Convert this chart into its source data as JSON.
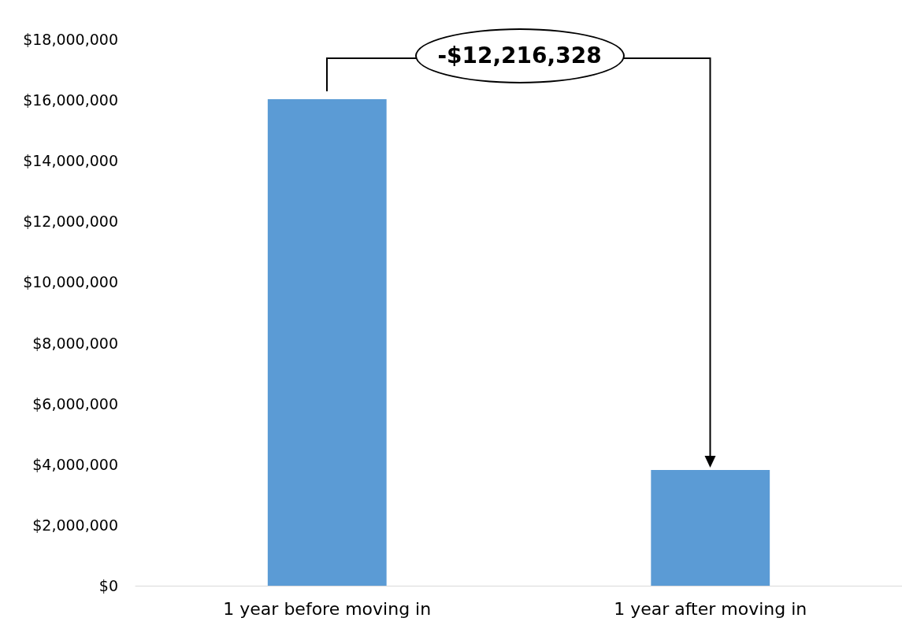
{
  "chart_data": {
    "type": "bar",
    "categories": [
      "1 year before moving in",
      "1 year after moving in"
    ],
    "values": [
      16030000,
      3810000
    ],
    "color": "#5b9bd5",
    "ylim": [
      0,
      18000000
    ],
    "yticks": [
      {
        "value": 0,
        "label": "$0"
      },
      {
        "value": 2000000,
        "label": "$2,000,000"
      },
      {
        "value": 4000000,
        "label": "$4,000,000"
      },
      {
        "value": 6000000,
        "label": "$6,000,000"
      },
      {
        "value": 8000000,
        "label": "$8,000,000"
      },
      {
        "value": 10000000,
        "label": "$10,000,000"
      },
      {
        "value": 12000000,
        "label": "$12,000,000"
      },
      {
        "value": 14000000,
        "label": "$14,000,000"
      },
      {
        "value": 16000000,
        "label": "$16,000,000"
      },
      {
        "value": 18000000,
        "label": "$18,000,000"
      }
    ],
    "grid": false,
    "annotations": [
      "-$12,216,328"
    ]
  }
}
